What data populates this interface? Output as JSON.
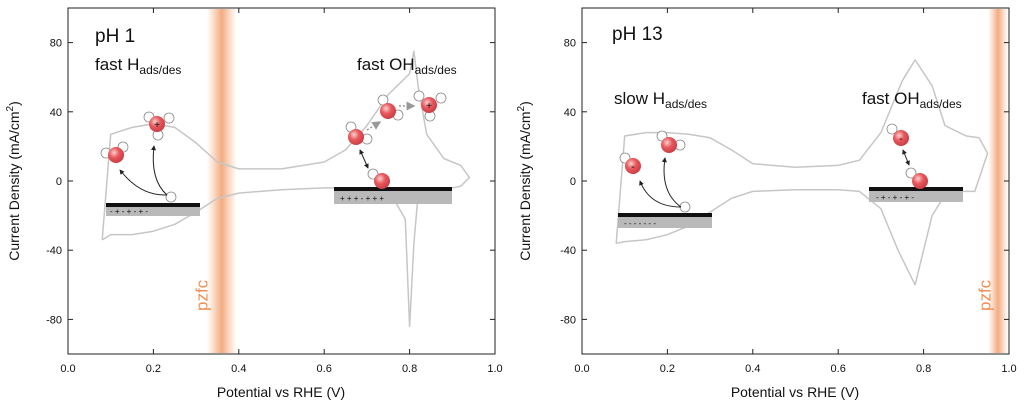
{
  "chart_data": [
    {
      "type": "line",
      "title": "pH 1",
      "xlabel": "Potential vs RHE (V)",
      "ylabel": "Current Density (mA/cm²)",
      "ylabel_main": "Current Density (mA/cm",
      "ylabel_sup": "2",
      "ylabel_end": ")",
      "xlim": [
        0.0,
        1.0
      ],
      "ylim": [
        -100,
        100
      ],
      "xticks": [
        "0.0",
        "0.2",
        "0.4",
        "0.6",
        "0.8",
        "1.0"
      ],
      "yticks": [
        "-80",
        "-40",
        "0",
        "40",
        "80"
      ],
      "xtick_values": [
        0.0,
        0.2,
        0.4,
        0.6,
        0.8,
        1.0
      ],
      "ytick_values": [
        -80,
        -40,
        0,
        40,
        80
      ],
      "grid": false,
      "pzfc_label": "pzfc",
      "pzfc_potential": 0.36,
      "annotations": {
        "h_prefix": "fast H",
        "h_sub": "ads/des",
        "oh_prefix": "fast OH",
        "oh_sub": "ads/des"
      },
      "charge_left": "- + - + - + -",
      "charge_right": "+ + + - + + +",
      "series": [
        {
          "x": [
            0.08,
            0.1,
            0.15,
            0.2,
            0.25,
            0.3,
            0.35,
            0.4,
            0.5,
            0.6,
            0.65,
            0.7,
            0.75,
            0.8,
            0.81,
            0.82,
            0.84,
            0.88,
            0.92,
            0.94,
            0.92,
            0.88,
            0.82,
            0.81,
            0.8,
            0.79,
            0.75,
            0.7,
            0.6,
            0.5,
            0.4,
            0.35,
            0.3,
            0.25,
            0.2,
            0.15,
            0.1,
            0.08
          ],
          "y": [
            -34,
            27,
            31,
            33,
            31,
            22,
            11,
            7,
            7,
            11,
            18,
            32,
            50,
            62,
            75,
            55,
            27,
            13,
            9,
            2,
            -3,
            -5,
            -8,
            -36,
            -84,
            -22,
            -5,
            -4,
            -4,
            -5,
            -7,
            -10,
            -18,
            -25,
            -29,
            -31,
            -31,
            -34
          ]
        }
      ]
    },
    {
      "type": "line",
      "title": "pH 13",
      "xlabel": "Potential vs RHE (V)",
      "ylabel": "Current Density (mA/cm²)",
      "ylabel_main": "Current Density (mA/cm",
      "ylabel_sup": "2",
      "ylabel_end": ")",
      "xlim": [
        0.0,
        1.0
      ],
      "ylim": [
        -100,
        100
      ],
      "xticks": [
        "0.0",
        "0.2",
        "0.4",
        "0.6",
        "0.8",
        "1.0"
      ],
      "yticks": [
        "-80",
        "-40",
        "0",
        "40",
        "80"
      ],
      "xtick_values": [
        0.0,
        0.2,
        0.4,
        0.6,
        0.8,
        1.0
      ],
      "ytick_values": [
        -80,
        -40,
        0,
        40,
        80
      ],
      "grid": false,
      "pzfc_label": "pzfc",
      "pzfc_potential": 0.99,
      "annotations": {
        "h_prefix": "slow H",
        "h_sub": "ads/des",
        "oh_prefix": "fast OH",
        "oh_sub": "ads/des"
      },
      "charge_left": "- - - - - - -",
      "charge_right": "- + - + - + -",
      "series": [
        {
          "x": [
            0.08,
            0.1,
            0.15,
            0.2,
            0.25,
            0.3,
            0.35,
            0.4,
            0.5,
            0.6,
            0.65,
            0.7,
            0.75,
            0.78,
            0.82,
            0.85,
            0.9,
            0.93,
            0.95,
            0.92,
            0.88,
            0.85,
            0.82,
            0.78,
            0.74,
            0.7,
            0.65,
            0.6,
            0.5,
            0.4,
            0.35,
            0.3,
            0.25,
            0.2,
            0.15,
            0.1,
            0.08
          ],
          "y": [
            -36,
            26,
            28,
            28,
            27,
            25,
            18,
            10,
            8,
            9,
            12,
            28,
            58,
            70,
            55,
            32,
            26,
            25,
            16,
            -6,
            -6,
            -8,
            -20,
            -60,
            -40,
            -16,
            -6,
            -5,
            -5,
            -6,
            -10,
            -18,
            -26,
            -31,
            -34,
            -35,
            -36
          ]
        }
      ]
    }
  ]
}
